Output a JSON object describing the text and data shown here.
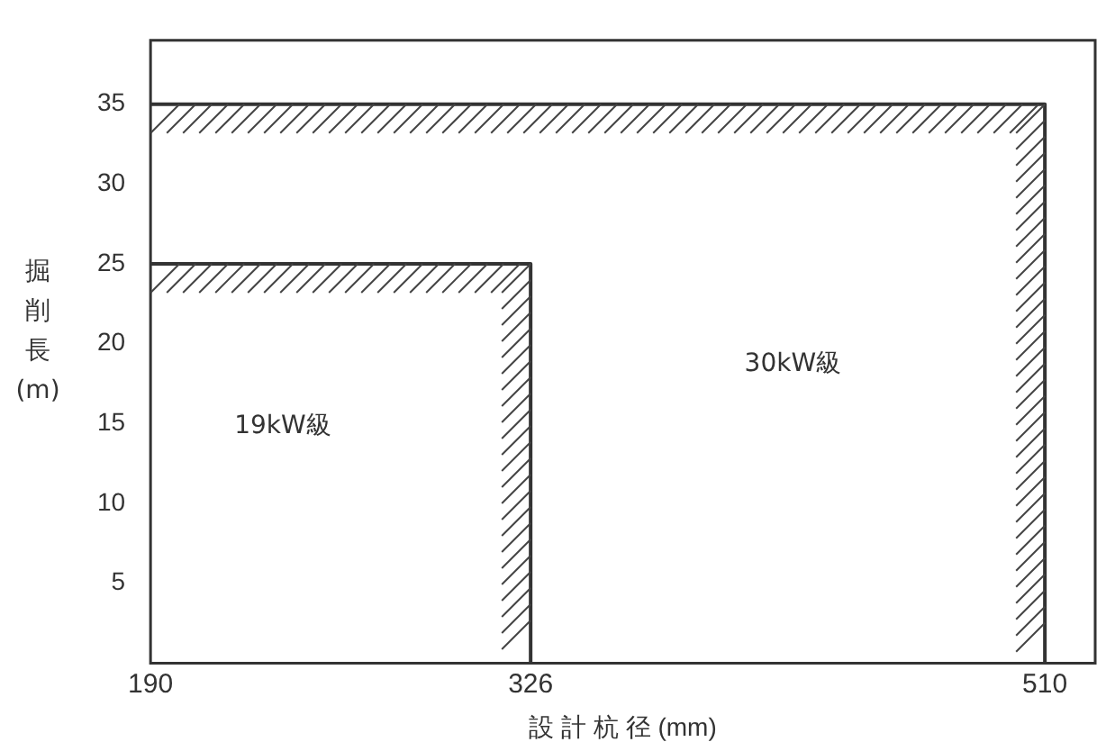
{
  "chart_data": {
    "type": "line",
    "xlabel": "設 計 杭 径 (mm)",
    "ylabel": "掘削長(m)",
    "series": [
      {
        "color": "#333333",
        "x": [
          190,
          326,
          326
        ],
        "values": [
          25,
          25,
          0
        ]
      },
      {
        "color": "#333333",
        "x": [
          190,
          510,
          510
        ],
        "values": [
          35,
          35,
          0
        ]
      }
    ],
    "xlim": [
      190,
      528
    ],
    "xticks": [
      190,
      326,
      510
    ],
    "ylim": [
      0,
      39
    ],
    "yticks": [
      5,
      10,
      15,
      20,
      25,
      30,
      35
    ],
    "annotations": [
      "19kW級",
      "30kW級"
    ],
    "grid": false,
    "legend": false,
    "marker": "none",
    "line_style": "solid"
  }
}
